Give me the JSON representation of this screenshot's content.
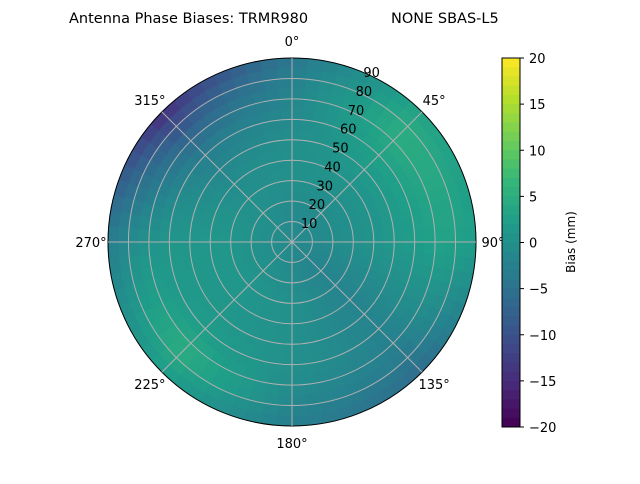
{
  "chart_data": {
    "type": "heatmap",
    "projection": "polar",
    "title_left": "Antenna Phase Biases: TRMR980",
    "title_right": "NONE SBAS-L5",
    "theta_direction": "clockwise",
    "theta_zero": "north",
    "theta_tick_labels": [
      "0°",
      "45°",
      "90°",
      "135°",
      "180°",
      "225°",
      "270°",
      "315°"
    ],
    "r_tick_labels": [
      "10",
      "20",
      "30",
      "40",
      "50",
      "60",
      "70",
      "80",
      "90"
    ],
    "r_range": [
      0,
      90
    ],
    "grid": true,
    "colormap": "viridis",
    "colorbar": {
      "label": "Bias (mm)",
      "range": [
        -20,
        20
      ],
      "tick_labels": [
        "20",
        "15",
        "10",
        "5",
        "0",
        "−5",
        "−10",
        "−15",
        "−20"
      ],
      "placement": "right"
    },
    "azimuth_deg": [
      0,
      45,
      90,
      135,
      180,
      225,
      270,
      315
    ],
    "zenith_deg": [
      0,
      15,
      30,
      45,
      60,
      75,
      90
    ],
    "bias_mm": [
      [
        -1,
        -1,
        0,
        0,
        -1,
        -2,
        -4
      ],
      [
        -1,
        -1,
        0,
        1,
        3,
        5,
        3
      ],
      [
        -1,
        -1,
        0,
        1,
        2,
        3,
        2
      ],
      [
        -1,
        -2,
        -2,
        -2,
        -2,
        -3,
        -6
      ],
      [
        -1,
        -1,
        0,
        0,
        0,
        -1,
        -3
      ],
      [
        -1,
        0,
        1,
        1,
        2,
        5,
        2
      ],
      [
        -1,
        0,
        1,
        1,
        1,
        0,
        -3
      ],
      [
        -1,
        0,
        0,
        -1,
        -3,
        -8,
        -15
      ]
    ]
  }
}
